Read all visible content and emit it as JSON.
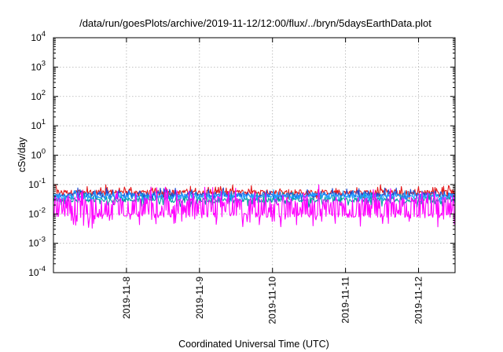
{
  "chart_data": {
    "type": "line",
    "title": "/data/run/goesPlots/archive/2019-11-12/12:00/flux/../bryn/5daysEarthData.plot",
    "xlabel": "Coordinated Universal Time (UTC)",
    "ylabel": "cSv/day",
    "yscale": "log",
    "ylim": [
      0.0001,
      10000
    ],
    "xlim": [
      "2019-11-07T00:00",
      "2019-11-12T12:00"
    ],
    "grid": true,
    "x_ticks": [
      "2019-11-8",
      "2019-11-9",
      "2019-11-10",
      "2019-11-11",
      "2019-11-12"
    ],
    "y_ticks": [
      {
        "base": "10",
        "exp": "-4"
      },
      {
        "base": "10",
        "exp": "-3"
      },
      {
        "base": "10",
        "exp": "-2"
      },
      {
        "base": "10",
        "exp": "-1"
      },
      {
        "base": "10",
        "exp": "0"
      },
      {
        "base": "10",
        "exp": "1"
      },
      {
        "base": "10",
        "exp": "2"
      },
      {
        "base": "10",
        "exp": "3"
      },
      {
        "base": "10",
        "exp": "4"
      }
    ],
    "series": [
      {
        "color": "#e41a1c",
        "level": 0.055,
        "spread": 1.6
      },
      {
        "color": "#1f4fd6",
        "level": 0.045,
        "spread": 1.5
      },
      {
        "color": "#00a0a0",
        "level": 0.03,
        "spread": 1.6
      },
      {
        "color": "#1fa0ff",
        "level": 0.04,
        "spread": 1.4
      },
      {
        "color": "#ff00ff",
        "level": 0.009,
        "spread": 2.6
      }
    ]
  }
}
